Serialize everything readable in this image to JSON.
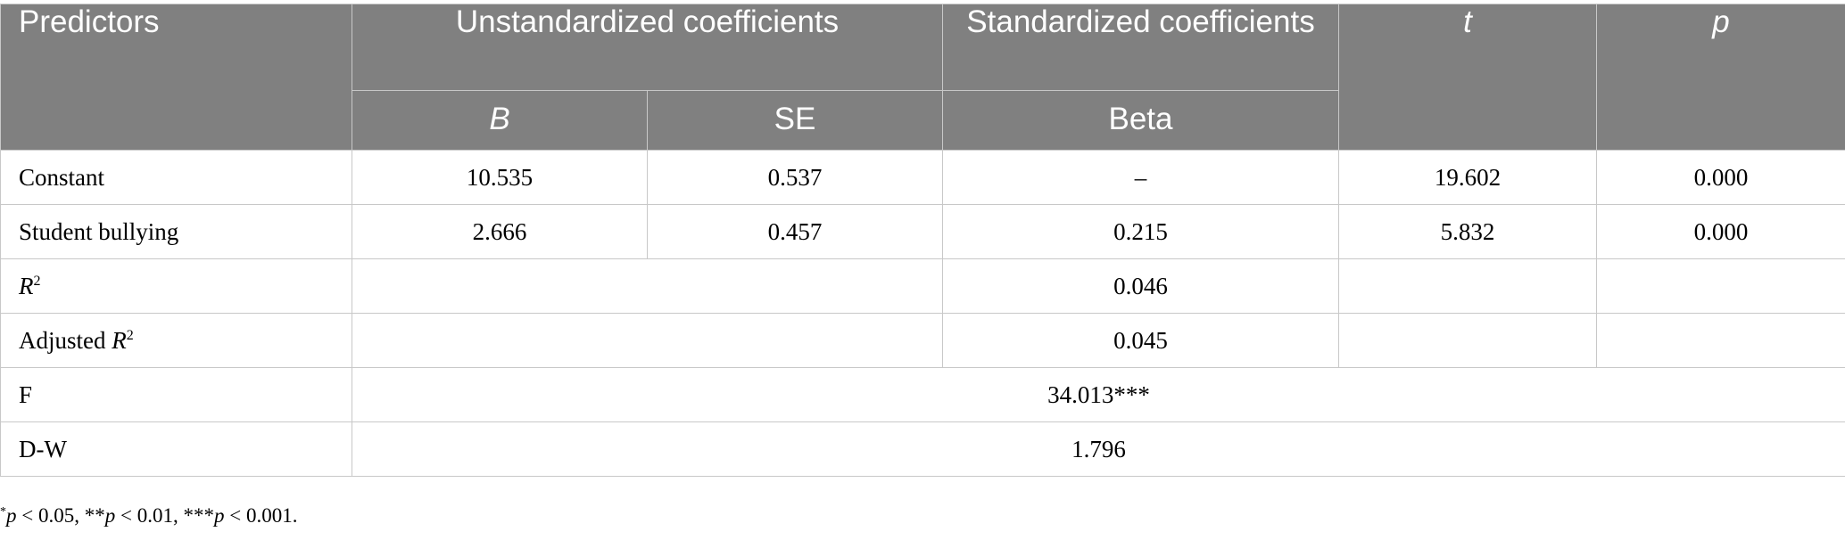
{
  "table": {
    "header": {
      "predictors": "Predictors",
      "unstandardized": "Unstandardized coefficients",
      "standardized": "Standardized coefficients",
      "t": "t",
      "p": "p",
      "b": "B",
      "se": "SE",
      "beta": "Beta"
    },
    "rows": [
      {
        "label": "Constant",
        "b": "10.535",
        "se": "0.537",
        "beta": "–",
        "t": "19.602",
        "p": "0.000"
      },
      {
        "label": "Student bullying",
        "b": "2.666",
        "se": "0.457",
        "beta": "0.215",
        "t": "5.832",
        "p": "0.000"
      }
    ],
    "r2": {
      "label_main": "R",
      "label_sup": "2",
      "value": "0.046"
    },
    "adj_r2": {
      "label_prefix": "Adjusted ",
      "label_main": "R",
      "label_sup": "2",
      "value": "0.045"
    },
    "f": {
      "label": "F",
      "value": "34.013***"
    },
    "dw": {
      "label": "D-W",
      "value": "1.796"
    }
  },
  "footnote": {
    "s1": "*",
    "p1": "p",
    "v1": " < 0.05, **",
    "p2": "p",
    "v2": " < 0.01, ***",
    "p3": "p",
    "v3": " < 0.001."
  }
}
